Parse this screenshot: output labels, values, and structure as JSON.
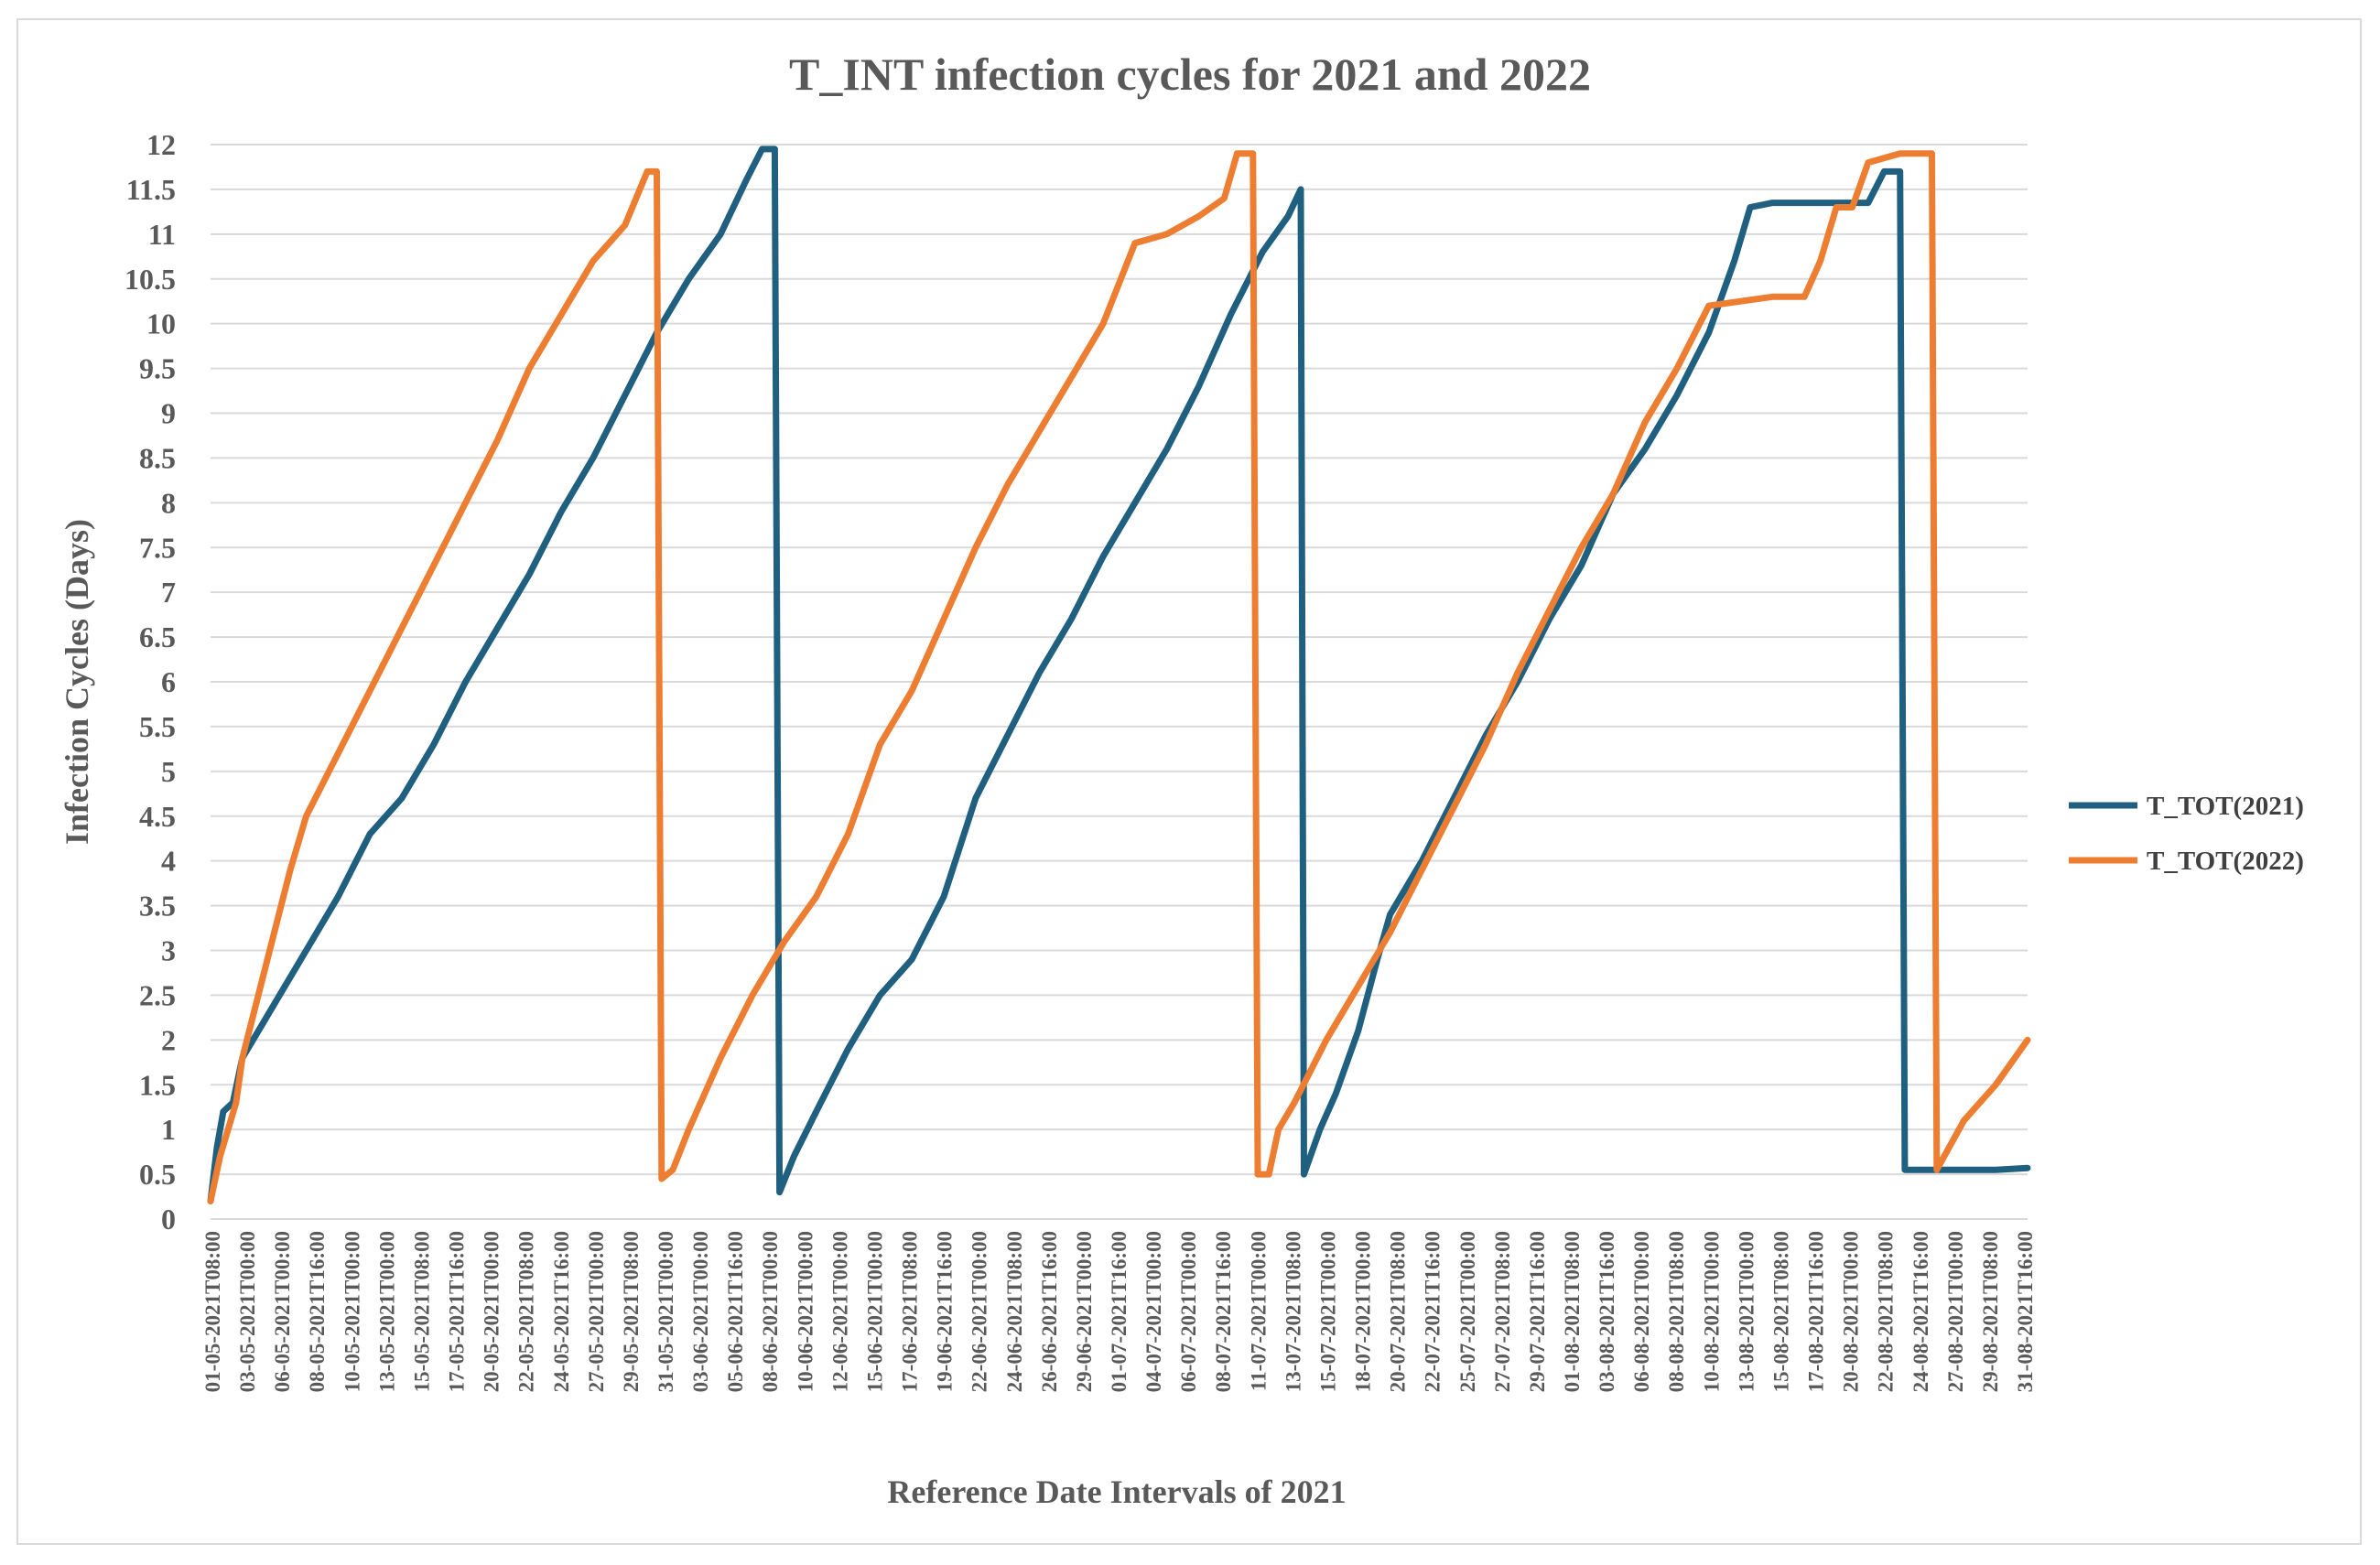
{
  "chart_data": {
    "type": "line",
    "title": "T_INT infection cycles for 2021 and 2022",
    "xlabel": "Reference Date Intervals of 2021",
    "ylabel": "Infection Cycles (Days)",
    "ylim": [
      0,
      12
    ],
    "yticks": [
      "0",
      "0.5",
      "1",
      "1.5",
      "2",
      "2.5",
      "3",
      "3.5",
      "4",
      "4.5",
      "5",
      "5.5",
      "6",
      "6.5",
      "7",
      "7.5",
      "8",
      "8.5",
      "9",
      "9.5",
      "10",
      "10.5",
      "11",
      "11.5",
      "12"
    ],
    "grid": true,
    "legend_position": "right",
    "x_index_range": [
      0,
      57
    ],
    "x_ticks": [
      "01-05-2021T08:00",
      "03-05-2021T00:00",
      "06-05-2021T00:00",
      "08-05-2021T16:00",
      "10-05-2021T00:00",
      "13-05-2021T00:00",
      "15-05-2021T08:00",
      "17-05-2021T16:00",
      "20-05-2021T00:00",
      "22-05-2021T08:00",
      "24-05-2021T16:00",
      "27-05-2021T00:00",
      "29-05-2021T08:00",
      "31-05-2021T00:00",
      "03-06-2021T00:00",
      "05-06-2021T16:00",
      "08-06-2021T00:00",
      "10-06-2021T00:00",
      "12-06-2021T00:00",
      "15-06-2021T00:00",
      "17-06-2021T08:00",
      "19-06-2021T16:00",
      "22-06-2021T00:00",
      "24-06-2021T08:00",
      "26-06-2021T16:00",
      "29-06-2021T00:00",
      "01-07-2021T16:00",
      "04-07-2021T00:00",
      "06-07-2021T00:00",
      "08-07-2021T16:00",
      "11-07-2021T00:00",
      "13-07-2021T08:00",
      "15-07-2021T00:00",
      "18-07-2021T00:00",
      "20-07-2021T08:00",
      "22-07-2021T16:00",
      "25-07-2021T00:00",
      "27-07-2021T08:00",
      "29-07-2021T16:00",
      "01-08-2021T08:00",
      "03-08-2021T16:00",
      "06-08-2021T00:00",
      "08-08-2021T08:00",
      "10-08-2021T00:00",
      "13-08-2021T00:00",
      "15-08-2021T08:00",
      "17-08-2021T16:00",
      "20-08-2021T00:00",
      "22-08-2021T08:00",
      "24-08-2021T16:00",
      "27-08-2021T00:00",
      "29-08-2021T08:00",
      "31-08-2021T16:00"
    ],
    "series": [
      {
        "name": "T_TOT(2021)",
        "color": "#1f5f7f",
        "points": [
          [
            0,
            0.2
          ],
          [
            0.2,
            0.8
          ],
          [
            0.4,
            1.2
          ],
          [
            0.7,
            1.3
          ],
          [
            1,
            1.8
          ],
          [
            2,
            2.4
          ],
          [
            3,
            3.0
          ],
          [
            4,
            3.6
          ],
          [
            5,
            4.3
          ],
          [
            6,
            4.7
          ],
          [
            7,
            5.3
          ],
          [
            8,
            6.0
          ],
          [
            9,
            6.6
          ],
          [
            10,
            7.2
          ],
          [
            11,
            7.9
          ],
          [
            12,
            8.5
          ],
          [
            13,
            9.2
          ],
          [
            14,
            9.9
          ],
          [
            15,
            10.5
          ],
          [
            16,
            11.0
          ],
          [
            16.8,
            11.6
          ],
          [
            17.3,
            11.95
          ],
          [
            17.7,
            11.95
          ],
          [
            17.85,
            0.3
          ],
          [
            18.3,
            0.7
          ],
          [
            19,
            1.2
          ],
          [
            20,
            1.9
          ],
          [
            21,
            2.5
          ],
          [
            22,
            2.9
          ],
          [
            23,
            3.6
          ],
          [
            24,
            4.7
          ],
          [
            25,
            5.4
          ],
          [
            26,
            6.1
          ],
          [
            27,
            6.7
          ],
          [
            28,
            7.4
          ],
          [
            29,
            8.0
          ],
          [
            30,
            8.6
          ],
          [
            31,
            9.3
          ],
          [
            32,
            10.1
          ],
          [
            33,
            10.8
          ],
          [
            33.8,
            11.2
          ],
          [
            34.2,
            11.5
          ],
          [
            34.3,
            0.5
          ],
          [
            34.8,
            1.0
          ],
          [
            35.3,
            1.4
          ],
          [
            36,
            2.1
          ],
          [
            36.6,
            2.9
          ],
          [
            37,
            3.4
          ],
          [
            38,
            4.0
          ],
          [
            39,
            4.7
          ],
          [
            40,
            5.4
          ],
          [
            41,
            6.0
          ],
          [
            42,
            6.7
          ],
          [
            43,
            7.3
          ],
          [
            44,
            8.1
          ],
          [
            45,
            8.6
          ],
          [
            46,
            9.2
          ],
          [
            47,
            9.9
          ],
          [
            47.8,
            10.7
          ],
          [
            48.3,
            11.3
          ],
          [
            49,
            11.35
          ],
          [
            50,
            11.35
          ],
          [
            51,
            11.35
          ],
          [
            52,
            11.35
          ],
          [
            52.5,
            11.7
          ],
          [
            53,
            11.7
          ],
          [
            53.15,
            0.55
          ],
          [
            54,
            0.55
          ],
          [
            55,
            0.55
          ],
          [
            56,
            0.55
          ],
          [
            57,
            0.57
          ]
        ]
      },
      {
        "name": "T_TOT(2022)",
        "color": "#ed7d31",
        "points": [
          [
            0,
            0.2
          ],
          [
            0.3,
            0.7
          ],
          [
            0.8,
            1.3
          ],
          [
            1,
            1.8
          ],
          [
            1.5,
            2.5
          ],
          [
            2,
            3.2
          ],
          [
            2.5,
            3.9
          ],
          [
            3,
            4.5
          ],
          [
            4,
            5.2
          ],
          [
            5,
            5.9
          ],
          [
            6,
            6.6
          ],
          [
            7,
            7.3
          ],
          [
            8,
            8.0
          ],
          [
            9,
            8.7
          ],
          [
            10,
            9.5
          ],
          [
            11,
            10.1
          ],
          [
            12,
            10.7
          ],
          [
            13,
            11.1
          ],
          [
            13.7,
            11.7
          ],
          [
            14,
            11.7
          ],
          [
            14.15,
            0.45
          ],
          [
            14.5,
            0.55
          ],
          [
            15,
            1.0
          ],
          [
            15.5,
            1.4
          ],
          [
            16,
            1.8
          ],
          [
            17,
            2.5
          ],
          [
            18,
            3.1
          ],
          [
            19,
            3.6
          ],
          [
            20,
            4.3
          ],
          [
            21,
            5.3
          ],
          [
            22,
            5.9
          ],
          [
            23,
            6.7
          ],
          [
            24,
            7.5
          ],
          [
            25,
            8.2
          ],
          [
            26,
            8.8
          ],
          [
            27,
            9.4
          ],
          [
            28,
            10.0
          ],
          [
            29,
            10.9
          ],
          [
            30,
            11.0
          ],
          [
            31,
            11.2
          ],
          [
            31.8,
            11.4
          ],
          [
            32.2,
            11.9
          ],
          [
            32.7,
            11.9
          ],
          [
            32.85,
            0.5
          ],
          [
            33.2,
            0.5
          ],
          [
            33.5,
            1.0
          ],
          [
            34,
            1.3
          ],
          [
            35,
            2.0
          ],
          [
            36,
            2.6
          ],
          [
            37,
            3.2
          ],
          [
            38,
            3.9
          ],
          [
            39,
            4.6
          ],
          [
            40,
            5.3
          ],
          [
            41,
            6.1
          ],
          [
            42,
            6.8
          ],
          [
            43,
            7.5
          ],
          [
            44,
            8.1
          ],
          [
            45,
            8.9
          ],
          [
            46,
            9.5
          ],
          [
            47,
            10.2
          ],
          [
            48,
            10.25
          ],
          [
            49,
            10.3
          ],
          [
            50,
            10.3
          ],
          [
            50.5,
            10.7
          ],
          [
            51,
            11.3
          ],
          [
            51.5,
            11.3
          ],
          [
            52,
            11.8
          ],
          [
            53,
            11.9
          ],
          [
            54,
            11.9
          ],
          [
            54.15,
            0.55
          ],
          [
            55,
            1.1
          ],
          [
            56,
            1.5
          ],
          [
            57,
            2.0
          ]
        ]
      }
    ]
  }
}
